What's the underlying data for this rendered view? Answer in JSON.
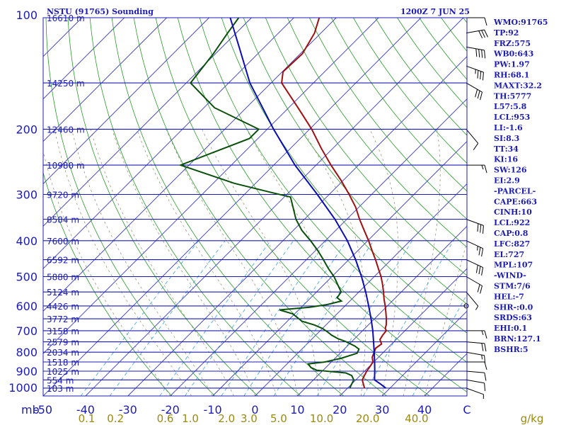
{
  "header": {
    "station": "NSTU (91765) Sounding",
    "time": "1200Z  7 JUN 25"
  },
  "chart_data": {
    "type": "line",
    "title": "NSTU (91765) Sounding",
    "pressure_unit_label": "mb",
    "mixing_ratio_unit_label": "g/kg",
    "pressure_ticks": [
      "100",
      "200",
      "300",
      "400",
      "500",
      "600",
      "700",
      "800",
      "900",
      "1000"
    ],
    "temperature_ticks": [
      "-50",
      "-40",
      "-30",
      "-20",
      "-10",
      "0",
      "10",
      "20",
      "30",
      "40",
      "C"
    ],
    "mixing_ratio_ticks": [
      "0.1",
      "0.2",
      "0.6",
      "1.0",
      "2.0",
      "3.0",
      "5.0",
      "10.0",
      "20.0",
      "40.0"
    ],
    "height_levels": [
      {
        "p": 100,
        "label": "16610 m"
      },
      {
        "p": 150,
        "label": "14250 m"
      },
      {
        "p": 200,
        "label": "12460 m"
      },
      {
        "p": 250,
        "label": "10980 m"
      },
      {
        "p": 300,
        "label": "9720 m"
      },
      {
        "p": 350,
        "label": "8584 m"
      },
      {
        "p": 400,
        "label": "7600 m"
      },
      {
        "p": 450,
        "label": "6592 m"
      },
      {
        "p": 500,
        "label": "5880 m"
      },
      {
        "p": 550,
        "label": "5124 m"
      },
      {
        "p": 600,
        "label": "4426 m"
      },
      {
        "p": 650,
        "label": "3772 m"
      },
      {
        "p": 700,
        "label": "3158 m"
      },
      {
        "p": 750,
        "label": "2579 m"
      },
      {
        "p": 800,
        "label": "2034 m"
      },
      {
        "p": 850,
        "label": "1518 m"
      },
      {
        "p": 900,
        "label": "1025 m"
      },
      {
        "p": 950,
        "label": "554 m"
      },
      {
        "p": 1000,
        "label": "103 m"
      }
    ],
    "xlim": [
      -50,
      50
    ],
    "ylim": [
      1000,
      100
    ],
    "series": [
      {
        "key": "temperature",
        "color": "#a01010",
        "points": [
          [
            1000,
            24.0
          ],
          [
            980,
            23.0
          ],
          [
            950,
            21.5
          ],
          [
            925,
            21.0
          ],
          [
            900,
            20.5
          ],
          [
            875,
            20.2
          ],
          [
            850,
            19.8
          ],
          [
            825,
            18.5
          ],
          [
            800,
            17.8
          ],
          [
            780,
            17.2
          ],
          [
            760,
            17.6
          ],
          [
            740,
            16.2
          ],
          [
            720,
            15.8
          ],
          [
            700,
            15.6
          ],
          [
            690,
            14.8
          ],
          [
            675,
            14.2
          ],
          [
            650,
            12.8
          ],
          [
            625,
            11.2
          ],
          [
            600,
            9.5
          ],
          [
            575,
            7.6
          ],
          [
            550,
            5.8
          ],
          [
            525,
            3.8
          ],
          [
            500,
            1.6
          ],
          [
            475,
            -1.0
          ],
          [
            450,
            -3.7
          ],
          [
            425,
            -6.7
          ],
          [
            400,
            -9.8
          ],
          [
            375,
            -13.3
          ],
          [
            350,
            -17.0
          ],
          [
            325,
            -20.7
          ],
          [
            300,
            -25.3
          ],
          [
            275,
            -30.5
          ],
          [
            250,
            -36.5
          ],
          [
            225,
            -42.8
          ],
          [
            200,
            -49.5
          ],
          [
            175,
            -57.8
          ],
          [
            150,
            -67.5
          ],
          [
            140,
            -69.8
          ],
          [
            125,
            -69.5
          ],
          [
            110,
            -71.5
          ],
          [
            100,
            -74.0
          ]
        ]
      },
      {
        "key": "dewpoint",
        "color": "#0a500a",
        "points": [
          [
            1000,
            20.5
          ],
          [
            975,
            20.0
          ],
          [
            950,
            19.5
          ],
          [
            925,
            18.0
          ],
          [
            910,
            16.0
          ],
          [
            895,
            8.5
          ],
          [
            880,
            6.5
          ],
          [
            860,
            5.0
          ],
          [
            850,
            8.5
          ],
          [
            830,
            11.5
          ],
          [
            805,
            14.0
          ],
          [
            785,
            13.5
          ],
          [
            770,
            11.8
          ],
          [
            750,
            8.8
          ],
          [
            735,
            6.0
          ],
          [
            720,
            3.8
          ],
          [
            705,
            2.0
          ],
          [
            690,
            0.0
          ],
          [
            675,
            -2.8
          ],
          [
            660,
            -6.5
          ],
          [
            645,
            -8.5
          ],
          [
            630,
            -10.5
          ],
          [
            615,
            -14.5
          ],
          [
            605,
            -8.0
          ],
          [
            595,
            -4.5
          ],
          [
            582,
            -2.0
          ],
          [
            570,
            -3.8
          ],
          [
            550,
            -4.2
          ],
          [
            525,
            -6.8
          ],
          [
            500,
            -9.5
          ],
          [
            475,
            -12.8
          ],
          [
            450,
            -16.0
          ],
          [
            425,
            -19.5
          ],
          [
            400,
            -23.5
          ],
          [
            375,
            -28.0
          ],
          [
            350,
            -32.0
          ],
          [
            325,
            -35.5
          ],
          [
            305,
            -38.5
          ],
          [
            295,
            -45.0
          ],
          [
            280,
            -55.0
          ],
          [
            250,
            -72.0
          ],
          [
            230,
            -67.0
          ],
          [
            212,
            -62.0
          ],
          [
            200,
            -62.0
          ],
          [
            175,
            -77.5
          ],
          [
            150,
            -89.0
          ],
          [
            125,
            -90.5
          ],
          [
            110,
            -92.0
          ],
          [
            100,
            -93.0
          ]
        ]
      },
      {
        "key": "parcel",
        "color": "#0c0cb4",
        "points": [
          [
            1000,
            29.0
          ],
          [
            975,
            26.8
          ],
          [
            950,
            24.4
          ],
          [
            925,
            23.4
          ],
          [
            900,
            22.4
          ],
          [
            850,
            20.2
          ],
          [
            800,
            17.8
          ],
          [
            750,
            15.2
          ],
          [
            700,
            12.4
          ],
          [
            650,
            9.2
          ],
          [
            600,
            5.6
          ],
          [
            550,
            1.6
          ],
          [
            500,
            -3.0
          ],
          [
            450,
            -8.4
          ],
          [
            400,
            -14.8
          ],
          [
            350,
            -22.8
          ],
          [
            300,
            -32.8
          ],
          [
            250,
            -45.0
          ],
          [
            200,
            -58.5
          ],
          [
            150,
            -75.0
          ],
          [
            120,
            -86.0
          ],
          [
            100,
            -95.0
          ]
        ]
      }
    ],
    "wind_barbs": [
      {
        "p": 1000,
        "dir": 110,
        "kt": 5
      },
      {
        "p": 950,
        "dir": 100,
        "kt": 10
      },
      {
        "p": 900,
        "dir": 95,
        "kt": 10
      },
      {
        "p": 850,
        "dir": 90,
        "kt": 10
      },
      {
        "p": 800,
        "dir": 100,
        "kt": 15
      },
      {
        "p": 750,
        "dir": 95,
        "kt": 20
      },
      {
        "p": 700,
        "dir": 90,
        "kt": 15
      },
      {
        "p": 600,
        "dir": 0,
        "kt": 0
      },
      {
        "p": 550,
        "dir": 140,
        "kt": 5
      },
      {
        "p": 500,
        "dir": 120,
        "kt": 20
      },
      {
        "p": 450,
        "dir": 115,
        "kt": 30
      },
      {
        "p": 400,
        "dir": 115,
        "kt": 25
      },
      {
        "p": 350,
        "dir": 110,
        "kt": 30
      },
      {
        "p": 250,
        "dir": 90,
        "kt": 15
      },
      {
        "p": 200,
        "dir": 140,
        "kt": 10
      },
      {
        "p": 150,
        "dir": 120,
        "kt": 30
      },
      {
        "p": 135,
        "dir": 110,
        "kt": 35
      },
      {
        "p": 120,
        "dir": 100,
        "kt": 40
      },
      {
        "p": 110,
        "dir": 80,
        "kt": 30
      },
      {
        "p": 100,
        "dir": 90,
        "kt": 10
      }
    ]
  },
  "indices": [
    "WMO:91765",
    "TP:92",
    "FRZ:575",
    "WB0:643",
    "PW:1.97",
    "RH:68.1",
    "MAXT:32.2",
    "TH:5777",
    "L57:5.8",
    "LCL:953",
    "LI:-1.6",
    "SI:8.3",
    "TT:34",
    "KI:16",
    "SW:126",
    "EI:2.9",
    "-PARCEL-",
    "CAPE:663",
    "CINH:10",
    "LCL:922",
    "CAP:0.8",
    "LFC:827",
    "EL:727",
    "MPL:107",
    "-WIND-",
    "STM:7/6",
    "HEL:-7",
    "SHR-:0.0",
    "SRDS:63",
    "EHI:0.1",
    "BRN:127.1",
    "BSHR:5"
  ]
}
